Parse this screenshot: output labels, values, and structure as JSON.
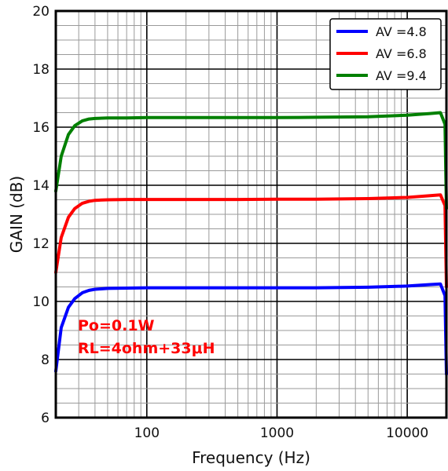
{
  "chart_data": {
    "type": "line",
    "xlabel": "Frequency (Hz)",
    "ylabel": "GAIN (dB)",
    "xscale": "log",
    "xlim": [
      20,
      20000
    ],
    "ylim": [
      6,
      20
    ],
    "xticks": [
      100,
      1000,
      10000
    ],
    "xtick_labels": [
      "100",
      "1000",
      "10000"
    ],
    "yticks": [
      6,
      8,
      10,
      12,
      14,
      16,
      18,
      20
    ],
    "ytick_labels": [
      "6",
      "8",
      "10",
      "12",
      "14",
      "16",
      "18",
      "20"
    ],
    "grid": true,
    "legend_position": "top-right",
    "series": [
      {
        "name": "AV =4.8",
        "color": "#0000ff",
        "x": [
          20,
          22,
          25,
          28,
          32,
          36,
          40,
          50,
          70,
          100,
          200,
          500,
          1000,
          2000,
          5000,
          10000,
          15000,
          18000,
          19500,
          20000
        ],
        "y": [
          7.6,
          9.1,
          9.8,
          10.1,
          10.3,
          10.38,
          10.42,
          10.45,
          10.46,
          10.47,
          10.47,
          10.47,
          10.47,
          10.47,
          10.49,
          10.53,
          10.58,
          10.6,
          10.2,
          7.5
        ]
      },
      {
        "name": "AV =6.8",
        "color": "#ff0000",
        "x": [
          20,
          22,
          25,
          28,
          32,
          36,
          40,
          50,
          70,
          100,
          200,
          500,
          1000,
          2000,
          5000,
          10000,
          15000,
          18000,
          19500,
          20000
        ],
        "y": [
          11.0,
          12.2,
          12.9,
          13.2,
          13.38,
          13.45,
          13.48,
          13.5,
          13.51,
          13.51,
          13.51,
          13.51,
          13.52,
          13.52,
          13.54,
          13.58,
          13.64,
          13.67,
          13.3,
          10.5
        ]
      },
      {
        "name": "AV =9.4",
        "color": "#008000",
        "x": [
          20,
          22,
          25,
          28,
          32,
          36,
          40,
          50,
          70,
          100,
          200,
          500,
          1000,
          2000,
          5000,
          10000,
          15000,
          18000,
          19500,
          20000
        ],
        "y": [
          13.8,
          15.0,
          15.75,
          16.05,
          16.22,
          16.28,
          16.3,
          16.32,
          16.32,
          16.33,
          16.33,
          16.33,
          16.33,
          16.34,
          16.36,
          16.41,
          16.47,
          16.5,
          16.1,
          13.2
        ]
      }
    ],
    "annotations": [
      {
        "text": "Po=0.1W",
        "color": "#ff0000"
      },
      {
        "text": "RL=4ohm+33μH",
        "color": "#ff0000"
      }
    ]
  }
}
